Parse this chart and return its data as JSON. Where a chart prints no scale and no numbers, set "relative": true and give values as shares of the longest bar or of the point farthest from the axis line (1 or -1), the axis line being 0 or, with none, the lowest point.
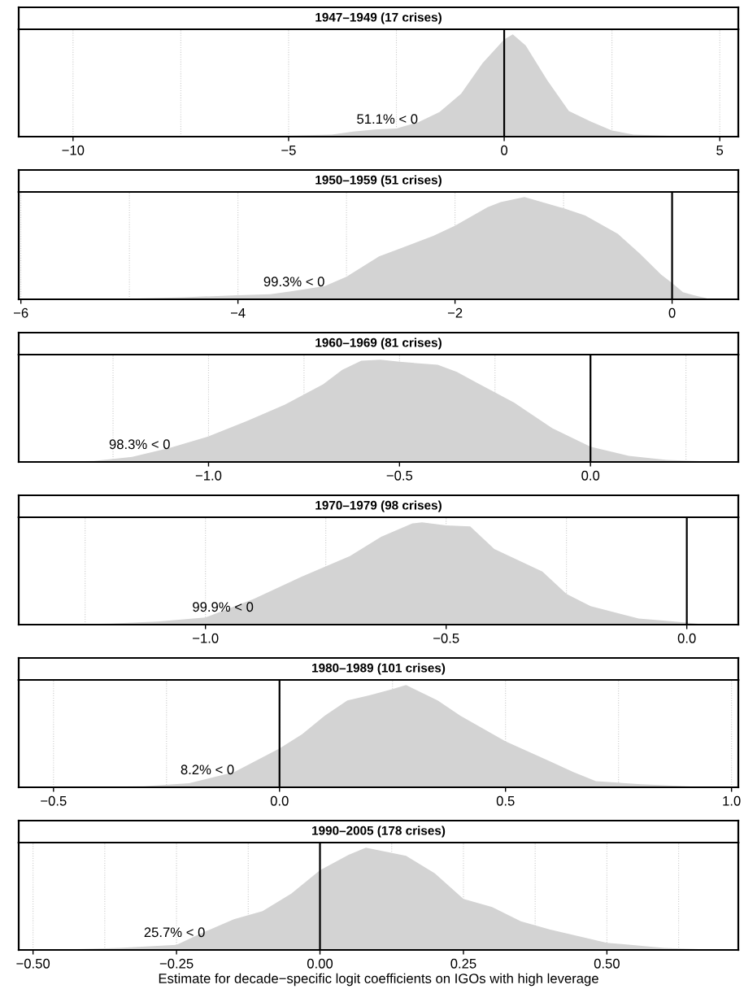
{
  "chart_data": [
    {
      "type": "area",
      "title": "1947–1949 (17 crises)",
      "relative": true,
      "grid": "x",
      "xlim": [
        -11.26,
        5.43
      ],
      "xticks": [
        {
          "value": -10,
          "label": "−10"
        },
        {
          "value": -7.5,
          "label": null
        },
        {
          "value": -5,
          "label": "−5"
        },
        {
          "value": -2.5,
          "label": null
        },
        0,
        {
          "value": 2.5,
          "label": null
        },
        5
      ],
      "x": [
        -10.5,
        -8,
        -6,
        -5,
        -4,
        -3.5,
        -3,
        -2.5,
        -2,
        -1.5,
        -1,
        -0.5,
        0,
        0.2,
        0.5,
        1,
        1.5,
        2,
        2.5,
        3,
        4,
        4.7
      ],
      "series": [
        {
          "color": "#d3d3d3",
          "values": [
            0,
            0.002,
            0.005,
            0.01,
            0.02,
            0.05,
            0.07,
            0.08,
            0.14,
            0.24,
            0.42,
            0.72,
            0.95,
            1.0,
            0.89,
            0.55,
            0.25,
            0.15,
            0.06,
            0.02,
            0.005,
            0
          ]
        }
      ],
      "ref_lines": [
        {
          "axis": "x",
          "value": 0,
          "color": "#000000"
        }
      ],
      "annotations": [
        "51.1% < 0"
      ]
    },
    {
      "type": "area",
      "title": "1950–1959 (51 crises)",
      "relative": true,
      "grid": "x",
      "xlim": [
        -6.02,
        0.61
      ],
      "xticks": [
        {
          "value": -6,
          "label": "−6"
        },
        {
          "value": -5,
          "label": null
        },
        {
          "value": -4,
          "label": "−4"
        },
        {
          "value": -3,
          "label": null
        },
        {
          "value": -2,
          "label": "−2"
        },
        {
          "value": -1,
          "label": null
        },
        0
      ],
      "x": [
        -5.7,
        -5,
        -4.5,
        -4,
        -3.7,
        -3.5,
        -3.2,
        -3,
        -2.7,
        -2.5,
        -2.2,
        -2,
        -1.7,
        -1.58,
        -1.36,
        -1.0,
        -0.8,
        -0.5,
        -0.3,
        -0.1,
        0,
        0.1,
        0.2,
        0.32
      ],
      "series": [
        {
          "color": "#d3d3d3",
          "values": [
            0,
            0.005,
            0.02,
            0.04,
            0.05,
            0.08,
            0.13,
            0.22,
            0.42,
            0.5,
            0.62,
            0.72,
            0.9,
            0.95,
            1.0,
            0.89,
            0.82,
            0.64,
            0.45,
            0.24,
            0.16,
            0.07,
            0.04,
            0.01
          ]
        }
      ],
      "ref_lines": [
        {
          "axis": "x",
          "value": 0,
          "color": "#000000"
        }
      ],
      "annotations": [
        "99.3% < 0"
      ]
    },
    {
      "type": "area",
      "title": "1960–1969 (81 crises)",
      "relative": true,
      "grid": "x",
      "xlim": [
        -1.497,
        0.387
      ],
      "xticks": [
        {
          "value": -1.25,
          "label": null
        },
        {
          "value": -1.0,
          "label": "−1.0"
        },
        {
          "value": -0.75,
          "label": null
        },
        {
          "value": -0.5,
          "label": "−0.5"
        },
        {
          "value": -0.25,
          "label": null
        },
        {
          "value": 0,
          "label": "0.0"
        },
        {
          "value": 0.25,
          "label": null
        }
      ],
      "x": [
        -1.41,
        -1.3,
        -1.2,
        -1.1,
        -1.0,
        -0.9,
        -0.8,
        -0.7,
        -0.65,
        -0.6,
        -0.55,
        -0.5,
        -0.4,
        -0.35,
        -0.3,
        -0.2,
        -0.1,
        0,
        0.1,
        0.2,
        0.3
      ],
      "series": [
        {
          "color": "#d3d3d3",
          "values": [
            0,
            0.01,
            0.05,
            0.14,
            0.25,
            0.4,
            0.56,
            0.76,
            0.9,
            0.99,
            1.0,
            0.98,
            0.95,
            0.88,
            0.78,
            0.58,
            0.33,
            0.15,
            0.06,
            0.02,
            0.005
          ]
        }
      ],
      "ref_lines": [
        {
          "axis": "x",
          "value": 0,
          "color": "#000000"
        }
      ],
      "annotations": [
        "98.3% < 0"
      ]
    },
    {
      "type": "area",
      "title": "1970–1979 (98 crises)",
      "relative": true,
      "grid": "x",
      "xlim": [
        -1.388,
        0.107
      ],
      "xticks": [
        {
          "value": -1.25,
          "label": null
        },
        {
          "value": -1.0,
          "label": "−1.0"
        },
        {
          "value": -0.75,
          "label": null
        },
        {
          "value": -0.5,
          "label": "−0.5"
        },
        {
          "value": -0.25,
          "label": null
        },
        {
          "value": 0,
          "label": "0.0"
        }
      ],
      "x": [
        -1.32,
        -1.2,
        -1.1,
        -1.0,
        -0.9,
        -0.8,
        -0.7,
        -0.635,
        -0.57,
        -0.55,
        -0.5,
        -0.45,
        -0.4,
        -0.3,
        -0.25,
        -0.2,
        -0.1,
        0,
        0.04
      ],
      "series": [
        {
          "color": "#d3d3d3",
          "values": [
            0,
            0.01,
            0.03,
            0.07,
            0.25,
            0.47,
            0.67,
            0.86,
            0.99,
            1.0,
            0.97,
            0.96,
            0.74,
            0.52,
            0.3,
            0.18,
            0.06,
            0.02,
            0
          ]
        }
      ],
      "ref_lines": [
        {
          "axis": "x",
          "value": 0,
          "color": "#000000"
        }
      ],
      "annotations": [
        "99.9% < 0"
      ]
    },
    {
      "type": "area",
      "title": "1980–1989 (101 crises)",
      "relative": true,
      "grid": "x",
      "xlim": [
        -0.577,
        1.015
      ],
      "xticks": [
        {
          "value": -0.5,
          "label": "−0.5"
        },
        {
          "value": -0.25,
          "label": null
        },
        {
          "value": 0,
          "label": "0.0"
        },
        {
          "value": 0.25,
          "label": null
        },
        {
          "value": 0.5,
          "label": "0.5"
        },
        {
          "value": 0.75,
          "label": null
        },
        {
          "value": 1.0,
          "label": "1.0"
        }
      ],
      "x": [
        -0.5,
        -0.3,
        -0.2,
        -0.1,
        0,
        0.05,
        0.1,
        0.15,
        0.2,
        0.25,
        0.28,
        0.35,
        0.4,
        0.5,
        0.6,
        0.65,
        0.7,
        0.8,
        0.95
      ],
      "series": [
        {
          "color": "#d3d3d3",
          "values": [
            0,
            0.01,
            0.04,
            0.15,
            0.38,
            0.52,
            0.7,
            0.85,
            0.9,
            0.96,
            1.0,
            0.85,
            0.7,
            0.45,
            0.25,
            0.15,
            0.06,
            0.03,
            0
          ]
        }
      ],
      "ref_lines": [
        {
          "axis": "x",
          "value": 0,
          "color": "#000000"
        }
      ],
      "annotations": [
        "8.2% < 0"
      ]
    },
    {
      "type": "area",
      "title": "1990–2005 (178 crises)",
      "relative": true,
      "grid": "x",
      "xlim": [
        -0.525,
        0.729
      ],
      "xlabel": "Estimate for decade−specific logit coefficients on IGOs with high leverage",
      "xticks": [
        {
          "value": -0.5,
          "label": "−0.50"
        },
        {
          "value": -0.375,
          "label": null
        },
        {
          "value": -0.25,
          "label": "−0.25"
        },
        {
          "value": -0.125,
          "label": null
        },
        {
          "value": 0,
          "label": "0.00"
        },
        {
          "value": 0.125,
          "label": null
        },
        {
          "value": 0.25,
          "label": "0.25"
        },
        {
          "value": 0.375,
          "label": null
        },
        {
          "value": 0.5,
          "label": "0.50"
        },
        {
          "value": 0.625,
          "label": null
        }
      ],
      "x": [
        -0.47,
        -0.35,
        -0.25,
        -0.2,
        -0.15,
        -0.1,
        -0.05,
        0,
        0.05,
        0.08,
        0.15,
        0.2,
        0.25,
        0.3,
        0.35,
        0.4,
        0.5,
        0.6,
        0.7
      ],
      "series": [
        {
          "color": "#d3d3d3",
          "values": [
            0,
            0.02,
            0.05,
            0.18,
            0.3,
            0.38,
            0.55,
            0.78,
            0.93,
            1.0,
            0.92,
            0.75,
            0.5,
            0.42,
            0.28,
            0.2,
            0.07,
            0.02,
            0
          ]
        }
      ],
      "ref_lines": [
        {
          "axis": "x",
          "value": 0,
          "color": "#000000"
        }
      ],
      "annotations": [
        "25.7% < 0"
      ]
    }
  ]
}
